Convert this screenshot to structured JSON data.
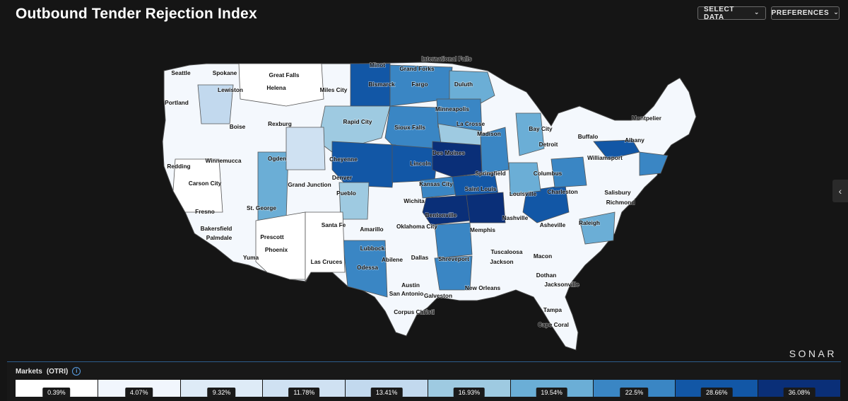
{
  "header": {
    "title": "Outbound Tender Rejection Index",
    "select_data": "SELECT DATA",
    "preferences": "PREFERENCES"
  },
  "brand": "SONAR",
  "legend": {
    "title": "Markets",
    "metric": "(OTRI)",
    "bins": [
      {
        "label": "0.39%",
        "color": "#ffffff"
      },
      {
        "label": "4.07%",
        "color": "#f1f6fd"
      },
      {
        "label": "9.32%",
        "color": "#deebf7"
      },
      {
        "label": "11.78%",
        "color": "#cfe1f2"
      },
      {
        "label": "13.41%",
        "color": "#c2d9ee"
      },
      {
        "label": "16.93%",
        "color": "#9ecae1"
      },
      {
        "label": "19.54%",
        "color": "#6baed6"
      },
      {
        "label": "22.5%",
        "color": "#3a86c4"
      },
      {
        "label": "28.66%",
        "color": "#1257a6"
      },
      {
        "label": "36.08%",
        "color": "#0a2f78"
      }
    ]
  },
  "map": {
    "cities": [
      "Seattle",
      "Spokane",
      "Great Falls",
      "Minot",
      "International Falls",
      "Grand Forks",
      "Lewiston",
      "Helena",
      "Miles City",
      "Bismarck",
      "Fargo",
      "Duluth",
      "Portland",
      "Boise",
      "Rexburg",
      "Rapid City",
      "Minneapolis",
      "Sioux Falls",
      "La Crosse",
      "Madison",
      "Bay City",
      "Detroit",
      "Montpelier",
      "Buffalo",
      "Albany",
      "Cheyenne",
      "Des Moines",
      "Ogden",
      "Lincoln",
      "Williamsport",
      "Redding",
      "Winnemucca",
      "Denver",
      "Springfield",
      "Columbus",
      "Carson City",
      "Grand Junction",
      "Kansas City",
      "Saint Louis",
      "Louisville",
      "Charleston",
      "Salisbury",
      "Pueblo",
      "Wichita",
      "Richmond",
      "St. George",
      "Fresno",
      "Santa Fe",
      "Bentonville",
      "Nashville",
      "Asheville",
      "Raleigh",
      "Bakersfield",
      "Prescott",
      "Amarillo",
      "Oklahoma City",
      "Memphis",
      "Palmdale",
      "Phoenix",
      "Lubbock",
      "Tuscaloosa",
      "Macon",
      "Yuma",
      "Las Cruces",
      "Abilene",
      "Dallas",
      "Shreveport",
      "Jackson",
      "Odessa",
      "Dothan",
      "Austin",
      "New Orleans",
      "Jacksonville",
      "San Antonio",
      "Galveston",
      "Corpus Christi",
      "Tampa",
      "Cape Coral"
    ]
  }
}
